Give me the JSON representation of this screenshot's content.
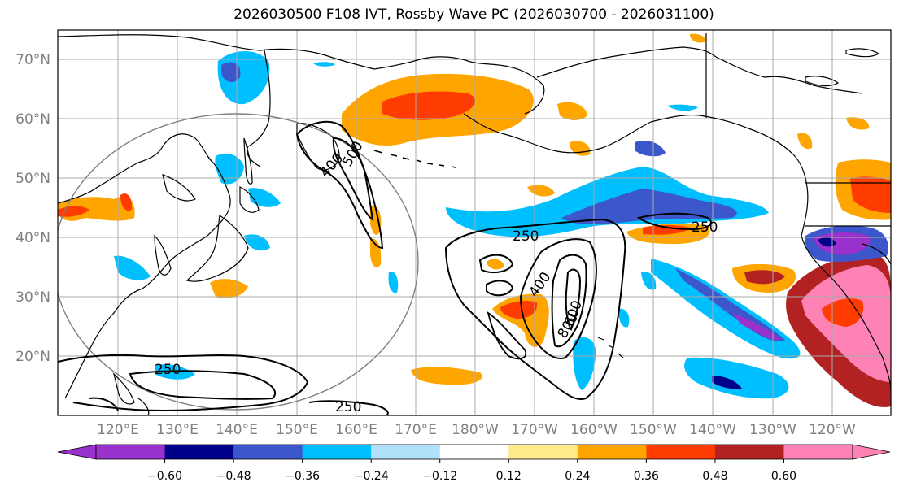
{
  "title": "2026030500 F108 IVT, Rossby Wave PC (2026030700 - 2026031100)",
  "lat_labels": [
    "70°N",
    "60°N",
    "50°N",
    "40°N",
    "30°N",
    "20°N"
  ],
  "lon_labels": [
    "120°E",
    "130°E",
    "140°E",
    "150°E",
    "160°E",
    "170°E",
    "180°W",
    "170°W",
    "160°W",
    "150°W",
    "140°W",
    "130°W",
    "120°W"
  ],
  "contour_labels": [
    "250",
    "250",
    "250",
    "250",
    "400",
    "400",
    "600",
    "800",
    "500"
  ],
  "colorbar": {
    "ticks": [
      "−0.60",
      "−0.48",
      "−0.36",
      "−0.24",
      "−0.12",
      "0.12",
      "0.24",
      "0.36",
      "0.48",
      "0.60"
    ],
    "colors": [
      "#9932cc",
      "#00008b",
      "#3c56cc",
      "#00bfff",
      "#b0e0fa",
      "#ffffff",
      "#ffe98a",
      "#ffa500",
      "#ff3c00",
      "#b22222",
      "#ff82b4"
    ]
  },
  "palette": {
    "land_line": "#000000",
    "contour": "#000000",
    "grid": "#aaaaaa",
    "circle": "#808080",
    "tick_label": "#808080"
  }
}
